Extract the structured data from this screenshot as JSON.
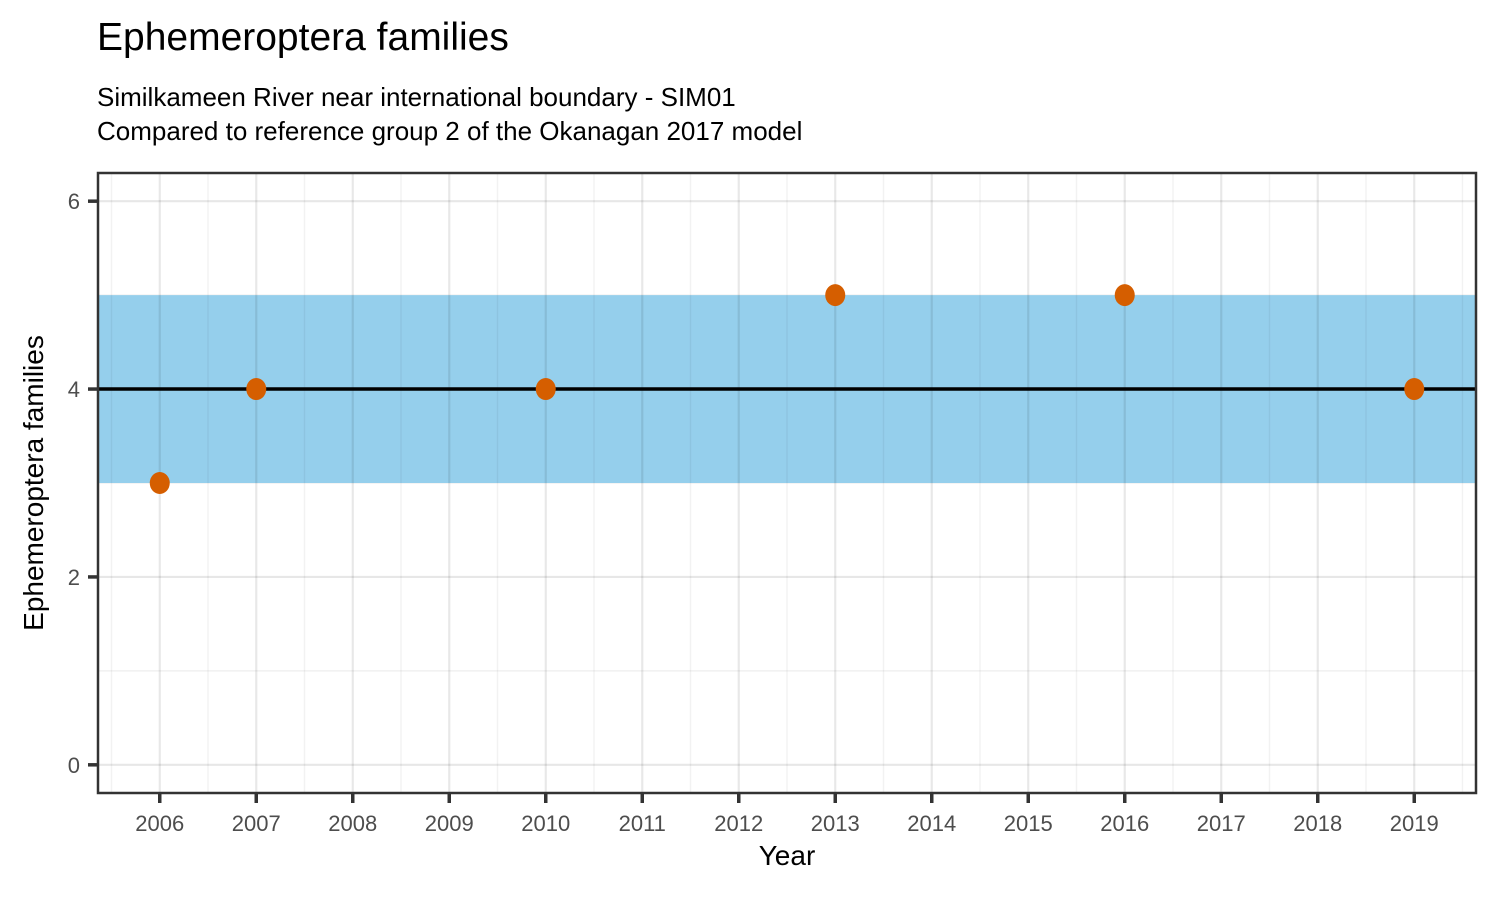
{
  "chart_data": {
    "type": "scatter",
    "title": "Ephemeroptera families",
    "subtitle": [
      "Similkameen River near international boundary - SIM01",
      "Compared to reference group 2 of the Okanagan 2017 model"
    ],
    "xlabel": "Year",
    "ylabel": "Ephemeroptera families",
    "x_domain": [
      2005.36,
      2019.64
    ],
    "y_domain": [
      -0.3,
      6.3
    ],
    "x_ticks": [
      2006,
      2007,
      2008,
      2009,
      2010,
      2011,
      2012,
      2013,
      2014,
      2015,
      2016,
      2017,
      2018,
      2019
    ],
    "x_minor_ticks": [
      2005.5,
      2006.5,
      2007.5,
      2008.5,
      2009.5,
      2010.5,
      2011.5,
      2012.5,
      2013.5,
      2014.5,
      2015.5,
      2016.5,
      2017.5,
      2018.5,
      2019.5
    ],
    "y_ticks": [
      0,
      2,
      4,
      6
    ],
    "y_minor_ticks": [
      1,
      3,
      5
    ],
    "grid": true,
    "legend": "none",
    "reference_band": {
      "y_min": 3,
      "y_max": 5,
      "color": "#95CFEC"
    },
    "reference_line": {
      "y": 4,
      "color": "#000000",
      "width": 3.5
    },
    "series": [
      {
        "name": "Ephemeroptera families",
        "color": "#D55E00",
        "points": [
          {
            "x": 2006,
            "y": 3
          },
          {
            "x": 2007,
            "y": 4
          },
          {
            "x": 2010,
            "y": 4
          },
          {
            "x": 2013,
            "y": 5
          },
          {
            "x": 2016,
            "y": 5
          },
          {
            "x": 2019,
            "y": 4
          }
        ]
      }
    ],
    "colors": {
      "grid_major": "#E7E7E7",
      "grid_minor": "#F1F1F1",
      "grid_over_band_major": "rgba(0,0,0,0.09)",
      "grid_over_band_minor": "rgba(0,0,0,0.05)",
      "axis_text": "#4D4D4D",
      "axis_ticks": "#333333",
      "panel_border": "#333333",
      "text": "#000000"
    }
  }
}
